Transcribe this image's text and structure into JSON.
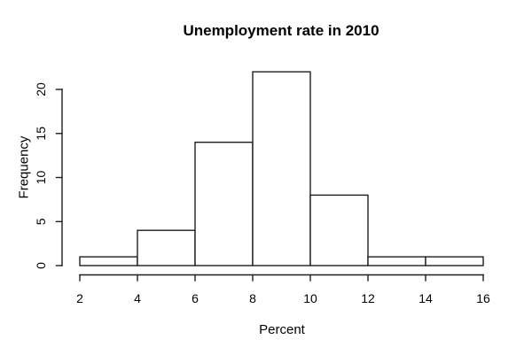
{
  "figure": {
    "background": "#ffffff"
  },
  "chart_data": {
    "type": "bar",
    "subtype": "histogram",
    "title": "Unemployment rate in 2010",
    "xlabel": "Percent",
    "ylabel": "Frequency",
    "bin_edges": [
      2,
      4,
      6,
      8,
      10,
      12,
      14,
      16
    ],
    "values": [
      1,
      4,
      14,
      22,
      8,
      1,
      1
    ],
    "x_ticks": [
      2,
      4,
      6,
      8,
      10,
      12,
      14,
      16
    ],
    "y_ticks": [
      0,
      5,
      10,
      15,
      20
    ],
    "xlim": [
      2,
      16
    ],
    "ylim": [
      0,
      22
    ],
    "grid": false,
    "legend": false,
    "bar_fill": "#ffffff",
    "bar_stroke": "#1f1f1f",
    "axis_color": "#1f1f1f",
    "text_color": "#000000"
  }
}
